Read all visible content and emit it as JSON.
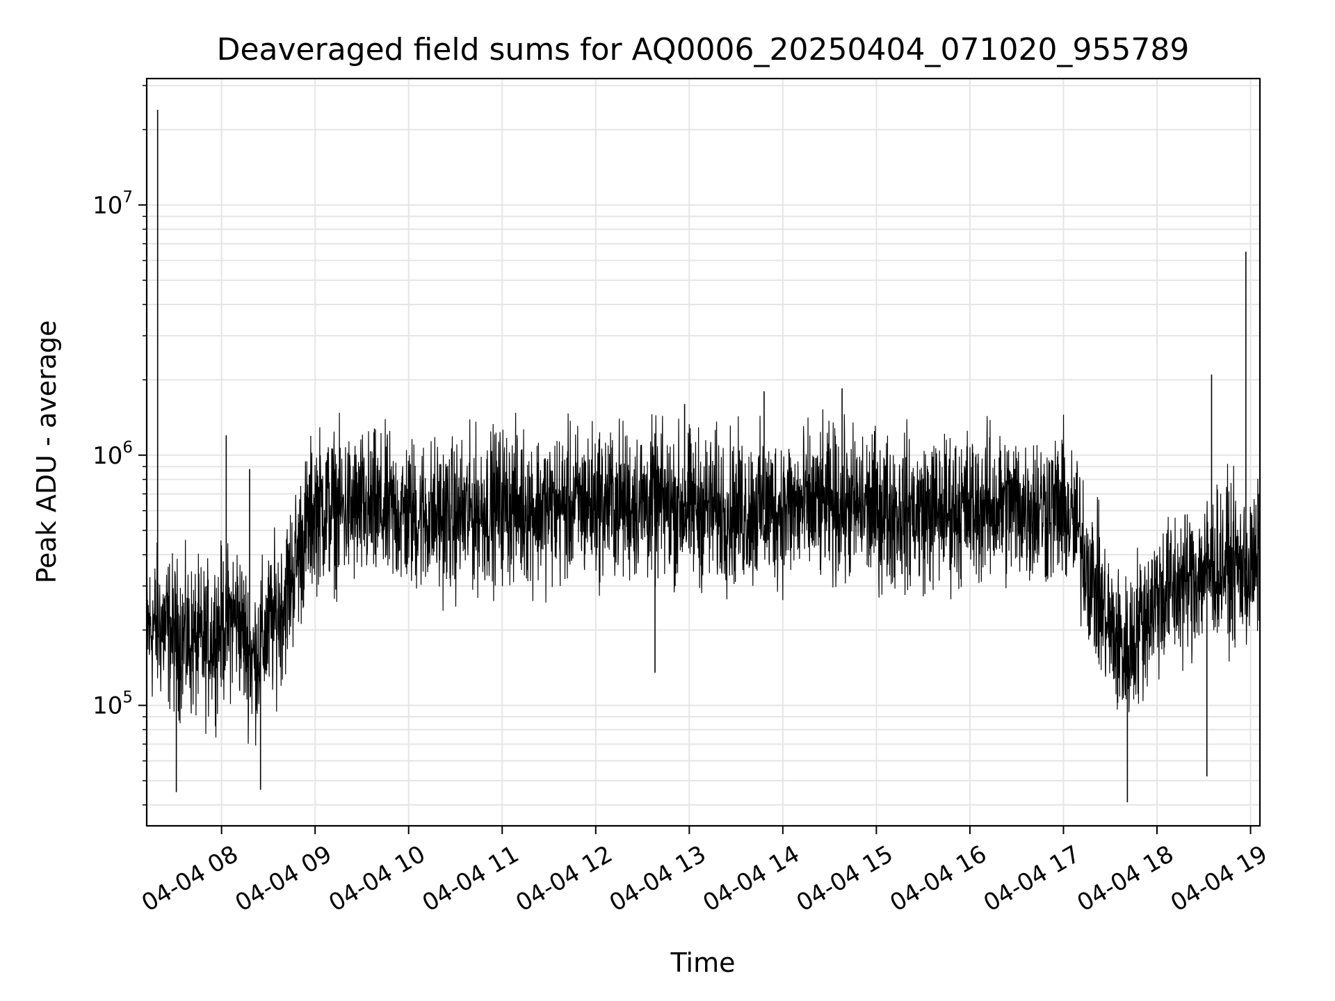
{
  "chart_data": {
    "type": "line",
    "title": "Deaveraged field sums for AQ0006_20250404_071020_955789",
    "xlabel": "Time",
    "ylabel": "Peak ADU - average",
    "yscale": "log",
    "grid": true,
    "line_color": "#000000",
    "grid_color": "#e5e5e5",
    "xlim": [
      "2025-04-04 07:12",
      "2025-04-04 19:06"
    ],
    "ylim": [
      33000,
      32000000
    ],
    "x_ticks": [
      {
        "value": "2025-04-04 08:00",
        "label": "04-04 08"
      },
      {
        "value": "2025-04-04 09:00",
        "label": "04-04 09"
      },
      {
        "value": "2025-04-04 10:00",
        "label": "04-04 10"
      },
      {
        "value": "2025-04-04 11:00",
        "label": "04-04 11"
      },
      {
        "value": "2025-04-04 12:00",
        "label": "04-04 12"
      },
      {
        "value": "2025-04-04 13:00",
        "label": "04-04 13"
      },
      {
        "value": "2025-04-04 14:00",
        "label": "04-04 14"
      },
      {
        "value": "2025-04-04 15:00",
        "label": "04-04 15"
      },
      {
        "value": "2025-04-04 16:00",
        "label": "04-04 16"
      },
      {
        "value": "2025-04-04 17:00",
        "label": "04-04 17"
      },
      {
        "value": "2025-04-04 18:00",
        "label": "04-04 18"
      },
      {
        "value": "2025-04-04 19:00",
        "label": "04-04 19"
      }
    ],
    "y_ticks": [
      {
        "value": 100000,
        "base": "10",
        "exp": "5"
      },
      {
        "value": 1000000,
        "base": "10",
        "exp": "6"
      },
      {
        "value": 10000000,
        "base": "10",
        "exp": "7"
      }
    ],
    "series": [
      {
        "x": [
          "2025-04-04 07:12",
          "2025-04-04 07:20",
          "2025-04-04 07:30",
          "2025-04-04 07:40",
          "2025-04-04 07:50",
          "2025-04-04 08:00",
          "2025-04-04 08:10",
          "2025-04-04 08:20",
          "2025-04-04 08:30",
          "2025-04-04 08:40",
          "2025-04-04 08:50",
          "2025-04-04 09:00",
          "2025-04-04 09:30",
          "2025-04-04 10:00",
          "2025-04-04 10:30",
          "2025-04-04 11:00",
          "2025-04-04 11:30",
          "2025-04-04 12:00",
          "2025-04-04 12:30",
          "2025-04-04 13:00",
          "2025-04-04 13:30",
          "2025-04-04 14:00",
          "2025-04-04 14:30",
          "2025-04-04 15:00",
          "2025-04-04 15:30",
          "2025-04-04 16:00",
          "2025-04-04 16:30",
          "2025-04-04 17:00",
          "2025-04-04 17:10",
          "2025-04-04 17:20",
          "2025-04-04 17:30",
          "2025-04-04 17:40",
          "2025-04-04 17:50",
          "2025-04-04 18:00",
          "2025-04-04 18:15",
          "2025-04-04 18:30",
          "2025-04-04 18:45",
          "2025-04-04 19:00",
          "2025-04-04 19:06"
        ],
        "y": [
          200000,
          210000,
          190000,
          180000,
          175000,
          210000,
          230000,
          150000,
          200000,
          260000,
          420000,
          620000,
          600000,
          580000,
          560000,
          640000,
          610000,
          650000,
          640000,
          620000,
          600000,
          610000,
          630000,
          610000,
          590000,
          620000,
          630000,
          610000,
          480000,
          300000,
          200000,
          160000,
          220000,
          270000,
          300000,
          350000,
          370000,
          340000,
          380000
        ],
        "spikes": [
          {
            "x": "2025-04-04 07:19",
            "y": 24000000
          },
          {
            "x": "2025-04-04 08:03",
            "y": 1200000
          },
          {
            "x": "2025-04-04 08:18",
            "y": 880000
          },
          {
            "x": "2025-04-04 13:48",
            "y": 1800000
          },
          {
            "x": "2025-04-04 14:38",
            "y": 1850000
          },
          {
            "x": "2025-04-04 12:57",
            "y": 1600000
          },
          {
            "x": "2025-04-04 18:35",
            "y": 2100000
          },
          {
            "x": "2025-04-04 18:57",
            "y": 6500000
          }
        ],
        "dips": [
          {
            "x": "2025-04-04 07:31",
            "y": 45000
          },
          {
            "x": "2025-04-04 08:25",
            "y": 46000
          },
          {
            "x": "2025-04-04 12:38",
            "y": 135000
          },
          {
            "x": "2025-04-04 17:41",
            "y": 41000
          },
          {
            "x": "2025-04-04 18:32",
            "y": 52000
          }
        ]
      }
    ]
  }
}
